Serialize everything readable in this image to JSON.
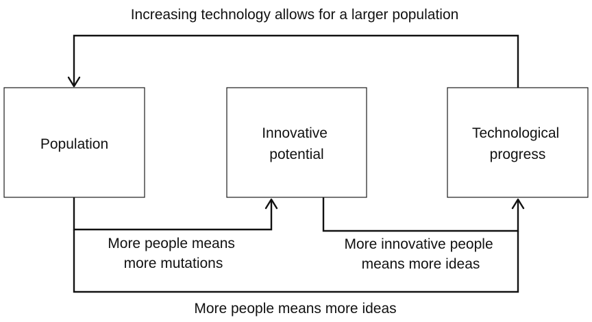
{
  "nodes": {
    "population": {
      "lines": [
        "Population"
      ]
    },
    "innovative_potential": {
      "lines": [
        "Innovative",
        "potential"
      ]
    },
    "technological_progress": {
      "lines": [
        "Technological",
        "progress"
      ]
    }
  },
  "edges": {
    "tech_to_population": "Increasing technology allows for a larger population",
    "population_to_innovative": {
      "lines": [
        "More people means",
        "more mutations"
      ]
    },
    "innovative_to_tech": {
      "lines": [
        "More innovative people",
        "means more ideas"
      ]
    },
    "population_to_tech": "More people means more ideas"
  }
}
